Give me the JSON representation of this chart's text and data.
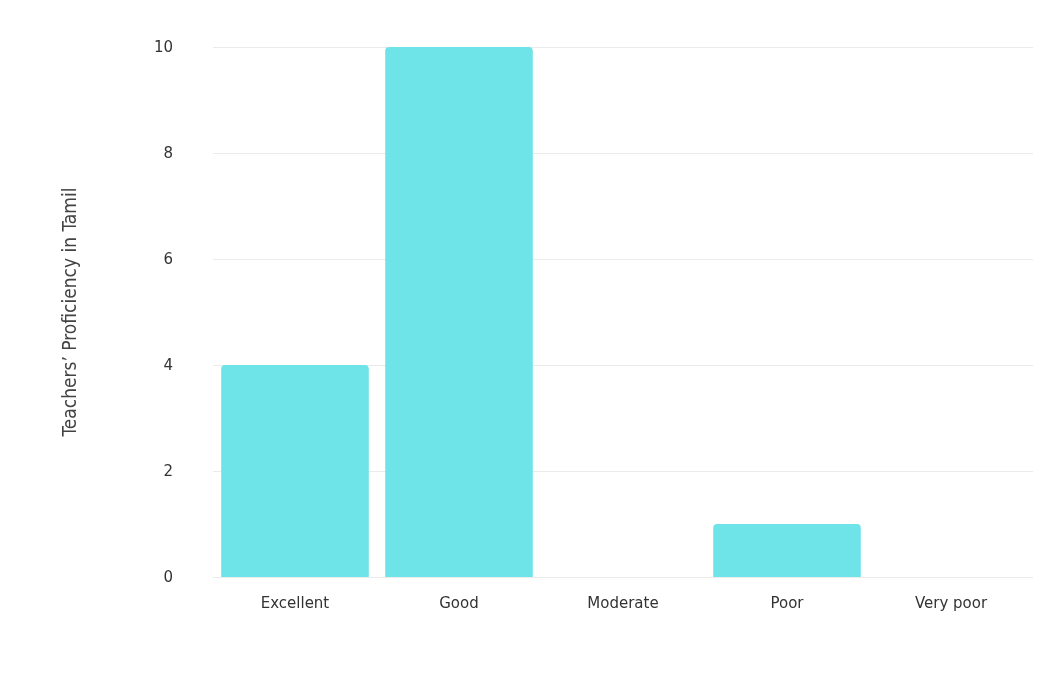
{
  "chart_data": {
    "type": "bar",
    "ylabel": "Teachers’ Proficiency in Tamil",
    "categories": [
      "Excellent",
      "Good",
      "Moderate",
      "Poor",
      "Very poor"
    ],
    "values": [
      4,
      10,
      0,
      1,
      0
    ],
    "color": "#6ee3e8",
    "ylim": [
      0,
      10
    ],
    "yticks": [
      0,
      2,
      4,
      6,
      8,
      10
    ],
    "grid": "y"
  }
}
